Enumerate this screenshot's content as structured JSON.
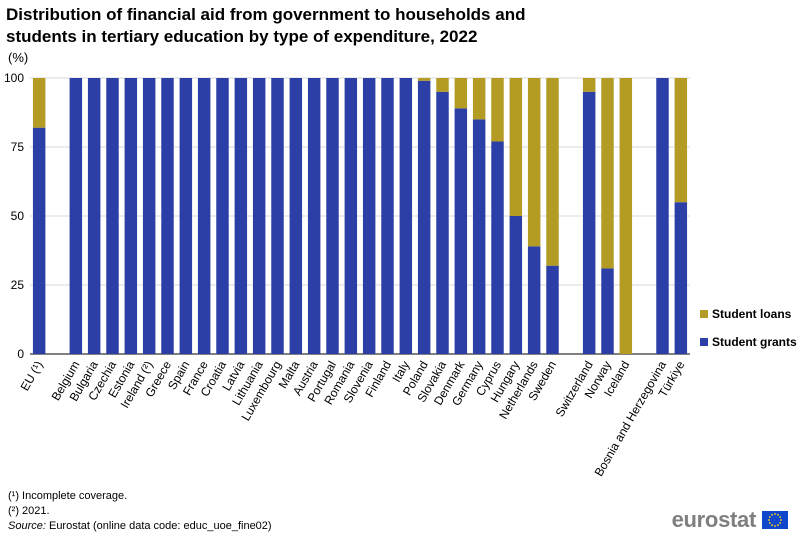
{
  "title_line1": "Distribution of financial aid from government to households and",
  "title_line2": "students in tertiary education by type of expenditure, 2022",
  "unit": "(%)",
  "footnotes": [
    "(¹) Incomplete  coverage.",
    "(²) 2021."
  ],
  "source_label": "Source:",
  "source_text": " Eurostat (online data code: educ_uoe_fine02)",
  "logo_text": "eurostat",
  "logo_icon": "eu-flag-icon",
  "colors": {
    "grants": "#2b3fa6",
    "loans": "#b39b24",
    "grid": "#d9d9d9"
  },
  "chart_data": {
    "type": "bar",
    "stacked": true,
    "categories": [
      "EU (¹)",
      "",
      "Belgium",
      "Bulgaria",
      "Czechia",
      "Estonia",
      "Ireland (²)",
      "Greece",
      "Spain",
      "France",
      "Croatia",
      "Latvia",
      "Lithuania",
      "Luxembourg",
      "Malta",
      "Austria",
      "Portugal",
      "Romania",
      "Slovenia",
      "Finland",
      "Italy",
      "Poland",
      "Slovakia",
      "Denmark",
      "Germany",
      "Cyprus",
      "Hungary",
      "Netherlands",
      "Sweden",
      "",
      "Switzerland",
      "Norway",
      "Iceland",
      "",
      "Bosnia and Herzegovina",
      "Türkiye"
    ],
    "series": [
      {
        "name": "Student grants",
        "values": [
          82,
          null,
          100,
          100,
          100,
          100,
          100,
          100,
          100,
          100,
          100,
          100,
          100,
          100,
          100,
          100,
          100,
          100,
          100,
          100,
          100,
          99,
          95,
          89,
          85,
          77,
          50,
          39,
          32,
          null,
          95,
          31,
          0,
          null,
          100,
          55
        ]
      },
      {
        "name": "Student loans",
        "values": [
          18,
          null,
          0,
          0,
          0,
          0,
          0,
          0,
          0,
          0,
          0,
          0,
          0,
          0,
          0,
          0,
          0,
          0,
          0,
          0,
          0,
          1,
          5,
          11,
          15,
          23,
          50,
          61,
          68,
          null,
          5,
          69,
          100,
          null,
          0,
          45
        ]
      }
    ],
    "ylim": [
      0,
      100
    ],
    "yticks": [
      0,
      25,
      50,
      75,
      100
    ],
    "grid": true,
    "legend_position": "right"
  }
}
